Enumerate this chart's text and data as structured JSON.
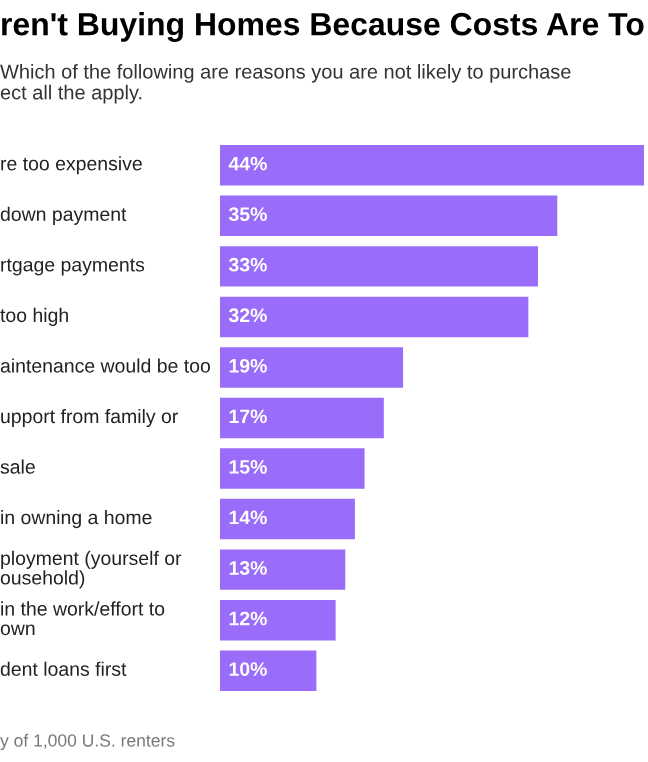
{
  "chart_data": {
    "type": "bar",
    "orientation": "horizontal",
    "title": "ren't Buying Homes Because Costs Are To",
    "subtitle": "Which of the following are reasons you are not likely to purchase\nect all the apply.",
    "categories": [
      "re too expensive",
      "down payment",
      "rtgage payments",
      "too high",
      "aintenance would be too",
      "upport from family or",
      "sale",
      "in owning a home",
      "ployment (yourself or\nousehold)",
      "in the work/effort to\nown",
      "dent loans first"
    ],
    "values": [
      44,
      35,
      33,
      32,
      19,
      17,
      15,
      14,
      13,
      12,
      10
    ],
    "value_labels": [
      "44%",
      "35%",
      "33%",
      "32%",
      "19%",
      "17%",
      "15%",
      "14%",
      "13%",
      "12%",
      "10%"
    ],
    "color": "#9a6cfa",
    "annotations": [
      "y of 1,000 U.S. renters"
    ]
  }
}
